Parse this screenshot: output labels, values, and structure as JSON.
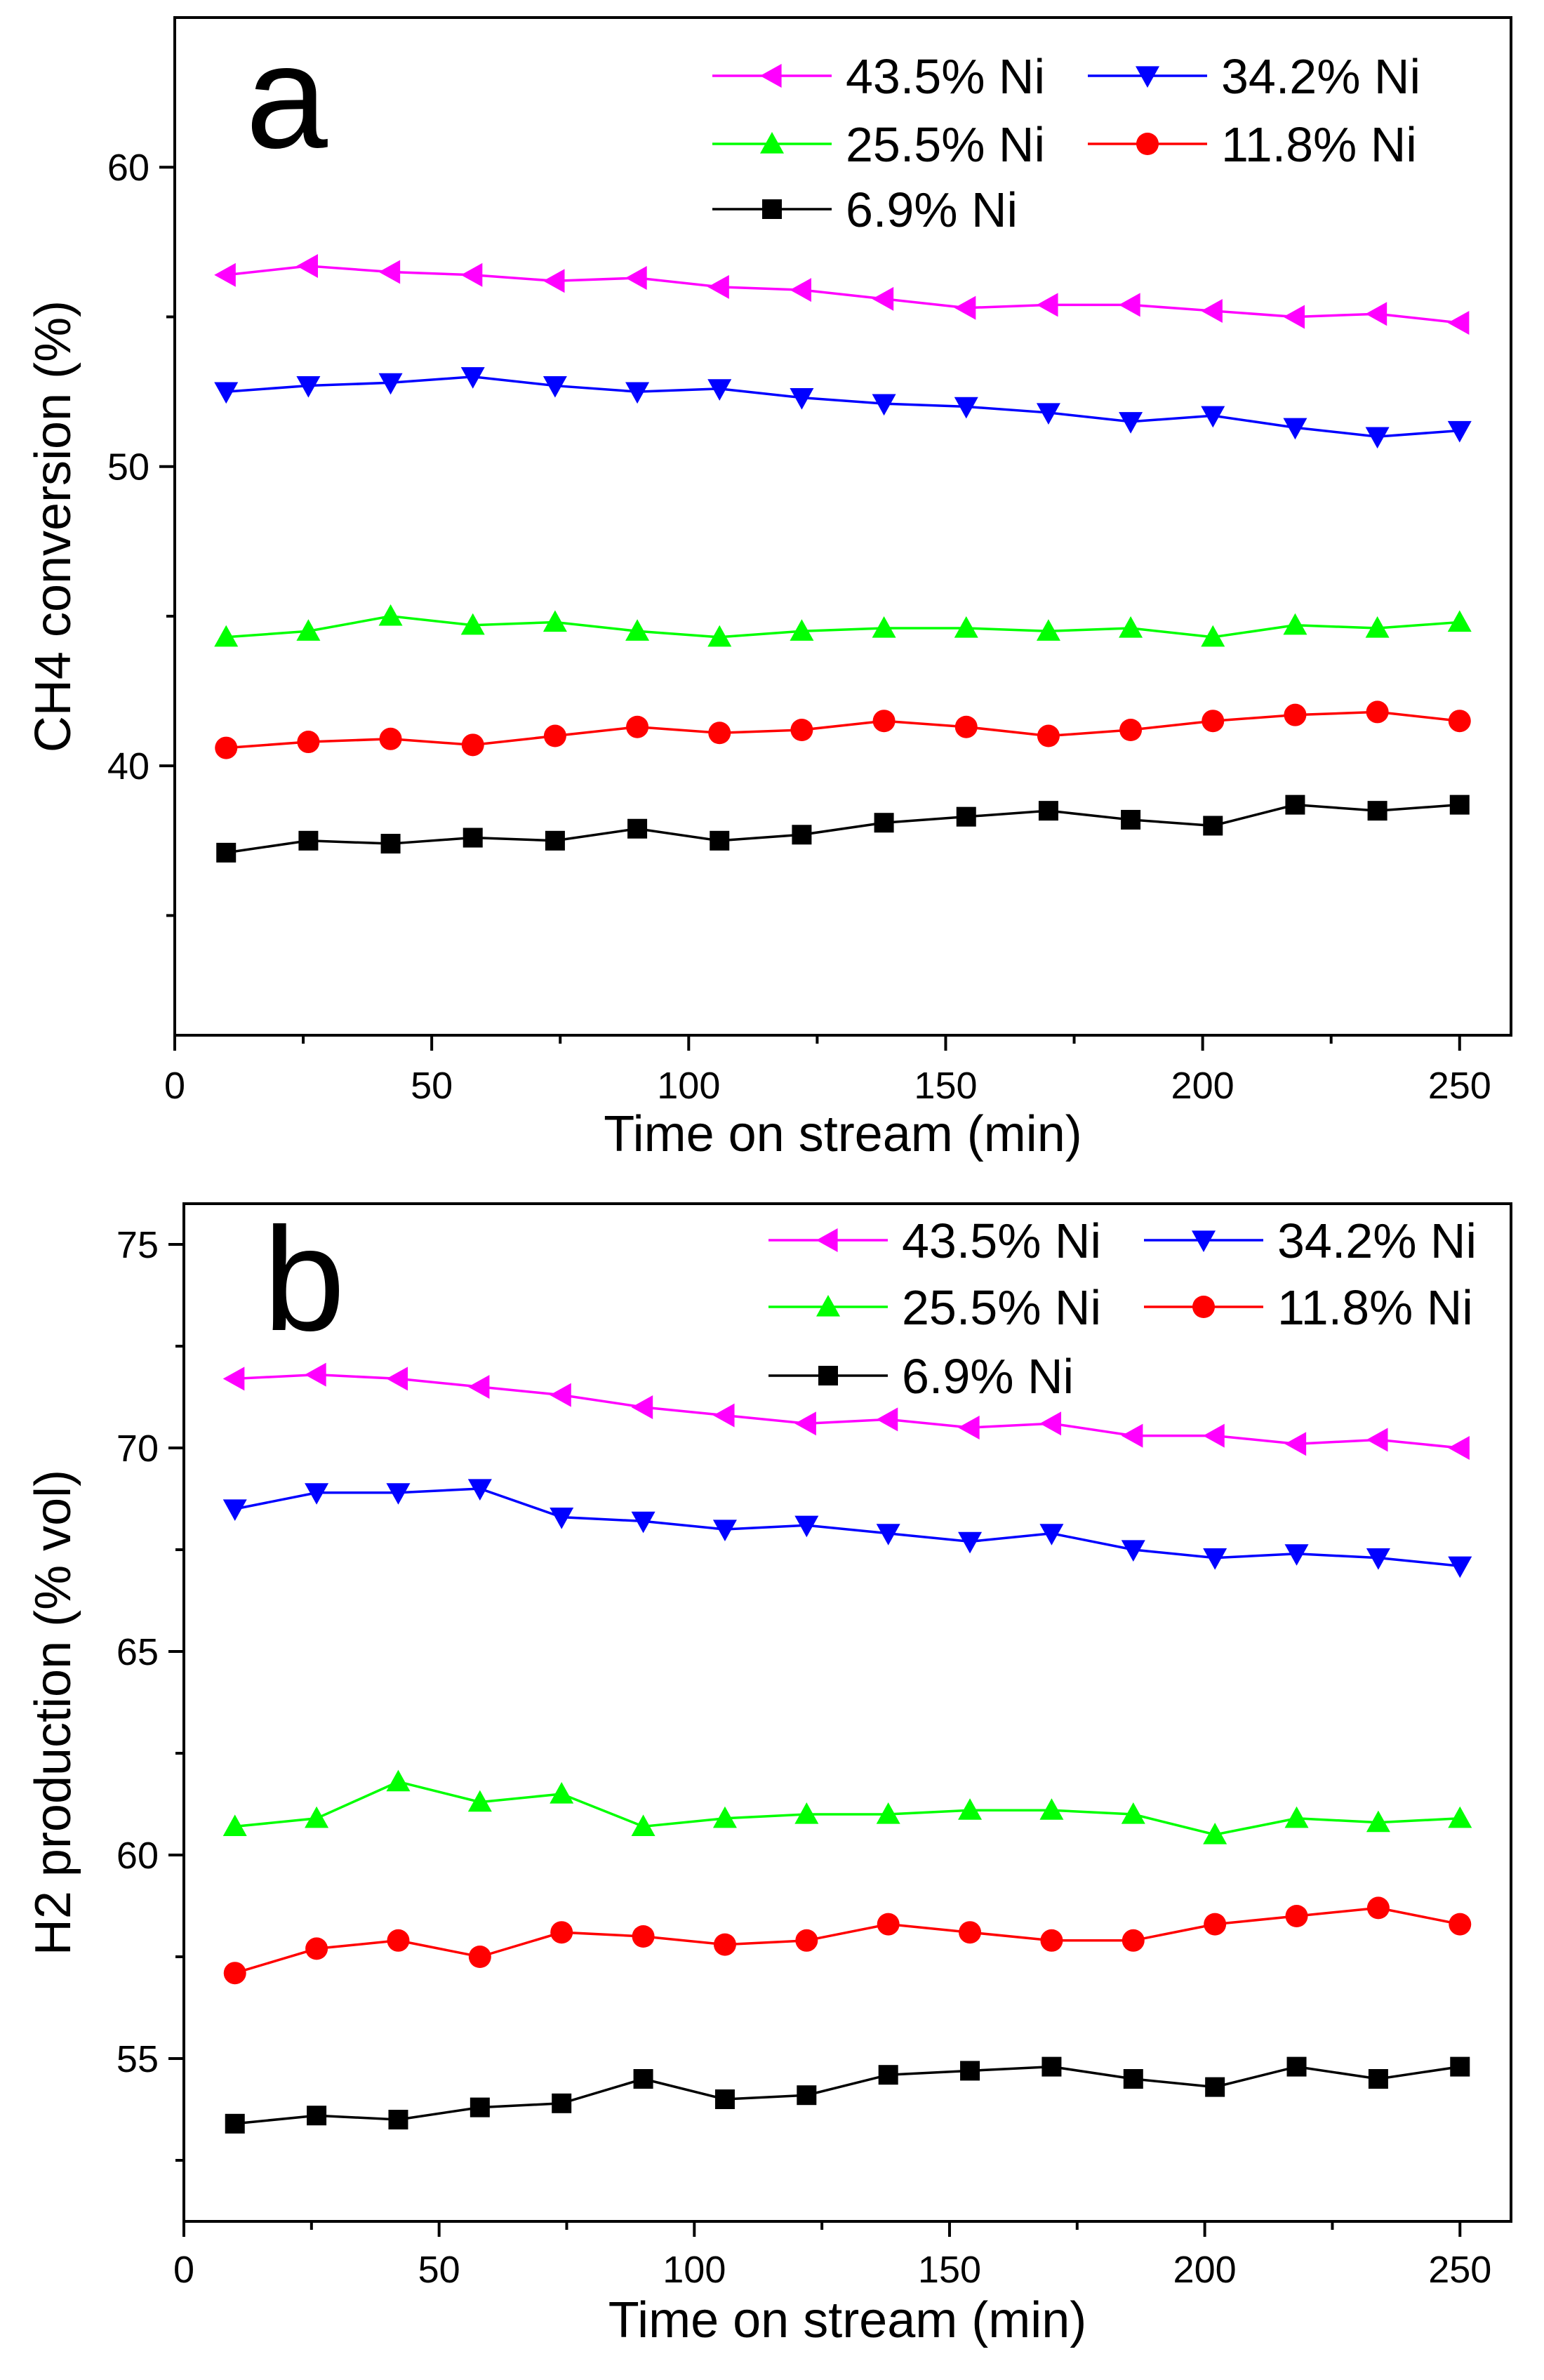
{
  "chart_data": [
    {
      "type": "line",
      "panel_label": "a",
      "xlabel": "Time on stream (min)",
      "ylabel": "CH4 conversion (%)",
      "xlim": [
        0,
        260
      ],
      "ylim": [
        31,
        65
      ],
      "x_ticks": [
        "0",
        "50",
        "100",
        "150",
        "200",
        "250"
      ],
      "y_ticks": [
        "40",
        "50",
        "60"
      ],
      "x": [
        10,
        26,
        42,
        58,
        74,
        90,
        106,
        122,
        138,
        154,
        170,
        186,
        202,
        218,
        234,
        250
      ],
      "series": [
        {
          "name": "43.5% Ni",
          "color": "#ff00ff",
          "marker": "triangle-left",
          "values": [
            56.4,
            56.7,
            56.5,
            56.4,
            56.2,
            56.3,
            56.0,
            55.9,
            55.6,
            55.3,
            55.4,
            55.4,
            55.2,
            55.0,
            55.1,
            54.8
          ]
        },
        {
          "name": "34.2% Ni",
          "color": "#0000ff",
          "marker": "triangle-down",
          "values": [
            52.5,
            52.7,
            52.8,
            53.0,
            52.7,
            52.5,
            52.6,
            52.3,
            52.1,
            52.0,
            51.8,
            51.5,
            51.7,
            51.3,
            51.0,
            51.2
          ]
        },
        {
          "name": "25.5% Ni",
          "color": "#00ff00",
          "marker": "triangle-up",
          "values": [
            44.3,
            44.5,
            45.0,
            44.7,
            44.8,
            44.5,
            44.3,
            44.5,
            44.6,
            44.6,
            44.5,
            44.6,
            44.3,
            44.7,
            44.6,
            44.8
          ]
        },
        {
          "name": "11.8% Ni",
          "color": "#ff0000",
          "marker": "circle",
          "values": [
            40.6,
            40.8,
            40.9,
            40.7,
            41.0,
            41.3,
            41.1,
            41.2,
            41.5,
            41.3,
            41.0,
            41.2,
            41.5,
            41.7,
            41.8,
            41.5
          ]
        },
        {
          "name": "6.9% Ni",
          "color": "#000000",
          "marker": "square",
          "values": [
            37.1,
            37.5,
            37.4,
            37.6,
            37.5,
            37.9,
            37.5,
            37.7,
            38.1,
            38.3,
            38.5,
            38.2,
            38.0,
            38.7,
            38.5,
            38.7
          ]
        }
      ]
    },
    {
      "type": "line",
      "panel_label": "b",
      "xlabel": "Time on stream (min)",
      "ylabel": "H2 production (% vol)",
      "xlim": [
        0,
        260
      ],
      "ylim": [
        51,
        76
      ],
      "x_ticks": [
        "0",
        "50",
        "100",
        "150",
        "200",
        "250"
      ],
      "y_ticks": [
        "55",
        "60",
        "65",
        "70",
        "75"
      ],
      "x": [
        10,
        26,
        42,
        58,
        74,
        90,
        106,
        122,
        138,
        154,
        170,
        186,
        202,
        218,
        234,
        250
      ],
      "series": [
        {
          "name": "43.5% Ni",
          "color": "#ff00ff",
          "marker": "triangle-left",
          "values": [
            71.7,
            71.8,
            71.7,
            71.5,
            71.3,
            71.0,
            70.8,
            70.6,
            70.7,
            70.5,
            70.6,
            70.3,
            70.3,
            70.1,
            70.2,
            70.0
          ]
        },
        {
          "name": "34.2% Ni",
          "color": "#0000ff",
          "marker": "triangle-down",
          "values": [
            68.5,
            68.9,
            68.9,
            69.0,
            68.3,
            68.2,
            68.0,
            68.1,
            67.9,
            67.7,
            67.9,
            67.5,
            67.3,
            67.4,
            67.3,
            67.1
          ]
        },
        {
          "name": "25.5% Ni",
          "color": "#00ff00",
          "marker": "triangle-up",
          "values": [
            60.7,
            60.9,
            61.8,
            61.3,
            61.5,
            60.7,
            60.9,
            61.0,
            61.0,
            61.1,
            61.1,
            61.0,
            60.5,
            60.9,
            60.8,
            60.9
          ]
        },
        {
          "name": "11.8% Ni",
          "color": "#ff0000",
          "marker": "circle",
          "values": [
            57.1,
            57.7,
            57.9,
            57.5,
            58.1,
            58.0,
            57.8,
            57.9,
            58.3,
            58.1,
            57.9,
            57.9,
            58.3,
            58.5,
            58.7,
            58.3
          ]
        },
        {
          "name": "6.9% Ni",
          "color": "#000000",
          "marker": "square",
          "values": [
            53.4,
            53.6,
            53.5,
            53.8,
            53.9,
            54.5,
            54.0,
            54.1,
            54.6,
            54.7,
            54.8,
            54.5,
            54.3,
            54.8,
            54.5,
            54.8
          ]
        }
      ]
    }
  ]
}
